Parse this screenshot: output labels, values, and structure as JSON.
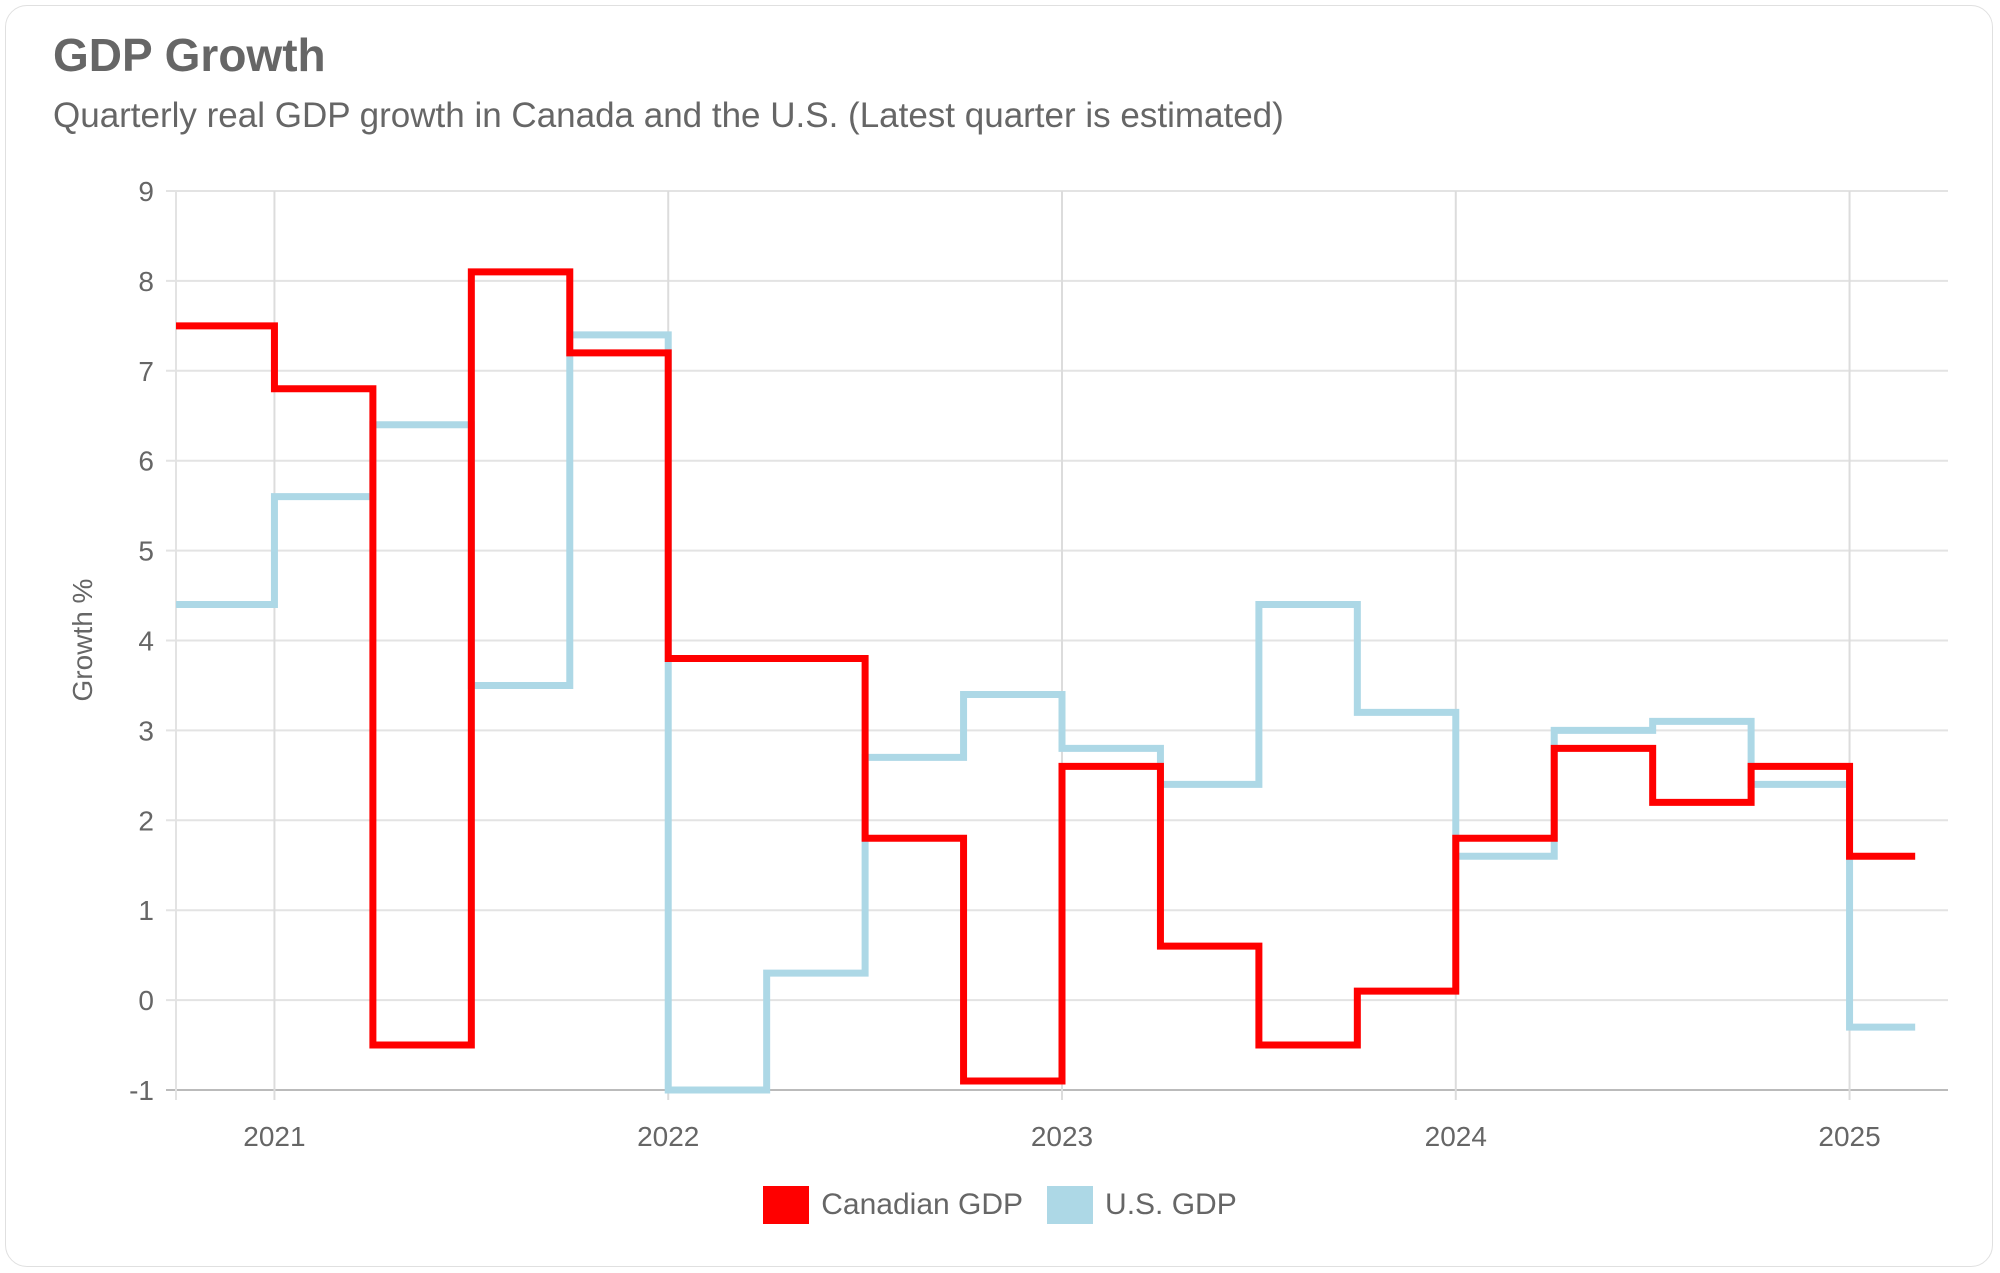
{
  "chart_data": {
    "type": "line",
    "step": "after",
    "title": "GDP Growth",
    "subtitle": "Quarterly real GDP growth in Canada and the U.S. (Latest quarter is estimated)",
    "xlabel": "",
    "ylabel": "Growth %",
    "ylim": [
      -1,
      9
    ],
    "yticks": [
      "9",
      "8",
      "7",
      "6",
      "5",
      "4",
      "3",
      "2",
      "1",
      "0",
      "-1"
    ],
    "xticks": [
      "2021",
      "2022",
      "2023",
      "2024",
      "2025"
    ],
    "grid": true,
    "legend_position": "bottom",
    "x": [
      "2020-Q4",
      "2021-Q1",
      "2021-Q2",
      "2021-Q3",
      "2021-Q4",
      "2022-Q1",
      "2022-Q2",
      "2022-Q3",
      "2022-Q4",
      "2023-Q1",
      "2023-Q2",
      "2023-Q3",
      "2023-Q4",
      "2024-Q1",
      "2024-Q2",
      "2024-Q3",
      "2024-Q4",
      "2025-Q1"
    ],
    "series": [
      {
        "name": "Canadian GDP",
        "color": "#ff0000",
        "values": [
          7.5,
          6.8,
          -0.5,
          8.1,
          7.2,
          3.8,
          3.8,
          1.8,
          -0.9,
          2.6,
          0.6,
          -0.5,
          0.1,
          1.8,
          2.8,
          2.2,
          2.6,
          1.6
        ]
      },
      {
        "name": "U.S. GDP",
        "color": "#add8e6",
        "values": [
          4.4,
          5.6,
          6.4,
          3.5,
          7.4,
          -1.0,
          0.3,
          2.7,
          3.4,
          2.8,
          2.4,
          4.4,
          3.2,
          1.6,
          3.0,
          3.1,
          2.4,
          -0.3
        ]
      }
    ]
  }
}
